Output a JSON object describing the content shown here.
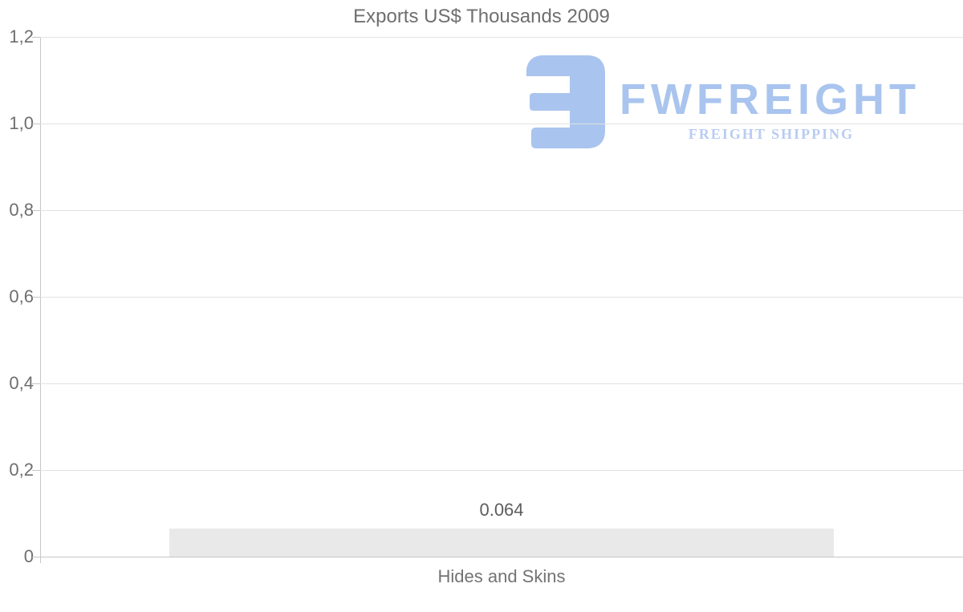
{
  "chart_data": {
    "type": "bar",
    "title": "Exports US$ Thousands 2009",
    "categories": [
      "Hides and Skins"
    ],
    "values": [
      0.064
    ],
    "bar_labels": [
      "0.064"
    ],
    "series": [
      {
        "name": "Exports US$ Thousands 2009",
        "values": [
          0.064
        ]
      }
    ],
    "xlabel": "",
    "ylabel": "",
    "ylim": [
      0,
      1.2
    ],
    "y_ticks": [
      {
        "label": "1,2",
        "value": 1.2
      },
      {
        "label": "1,0",
        "value": 1.0
      },
      {
        "label": "0,8",
        "value": 0.8
      },
      {
        "label": "0,6",
        "value": 0.6
      },
      {
        "label": "0,4",
        "value": 0.4
      },
      {
        "label": "0,2",
        "value": 0.2
      },
      {
        "label": "0",
        "value": 0
      }
    ],
    "grid": "horizontal",
    "legend": "none",
    "bar_color": "#e9e9e9"
  },
  "watermark": {
    "brand": "FWFREIGHT",
    "tagline": "FREIGHT SHIPPING",
    "icon": "fwfreight-logo-mark",
    "brand_color": "#a9c4ee",
    "tagline_color": "#b8ccf2"
  },
  "colors": {
    "background": "#ffffff",
    "title_text": "#6f6f6f",
    "tick_text": "#6e6e6e",
    "value_text": "#5c5c5c",
    "category_text": "#737373",
    "gridline": "#e2e2e2",
    "axis_line": "#c6c6c6"
  }
}
